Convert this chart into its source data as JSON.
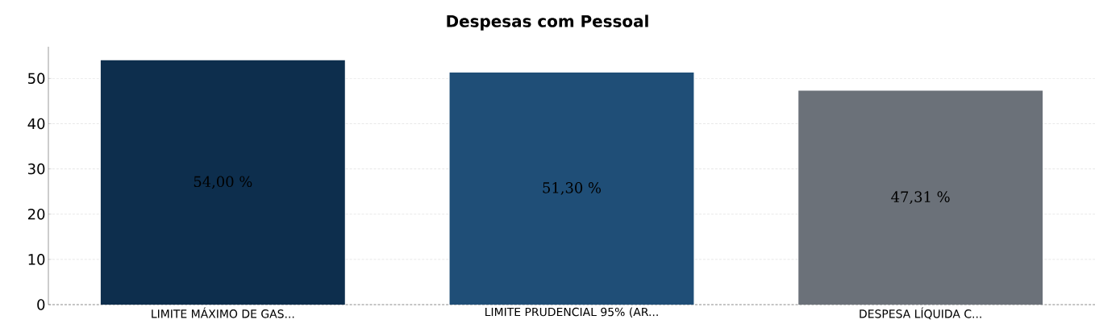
{
  "chart_data": {
    "type": "bar",
    "title": "Despesas com Pessoal",
    "categories": [
      "LIMITE MÁXIMO DE GAS...",
      "LIMITE PRUDENCIAL 95% (AR...",
      "DESPESA LÍQUIDA C..."
    ],
    "values": [
      54.0,
      51.3,
      47.31
    ],
    "colors": [
      "#0d2e4d",
      "#1f4e77",
      "#6b7179"
    ],
    "value_labels": [
      "54,00 %",
      "51,30 %",
      "47,31 %"
    ],
    "ylim": [
      0,
      57
    ],
    "yticks": [
      0,
      10,
      20,
      30,
      40,
      50
    ],
    "grid": "y"
  }
}
